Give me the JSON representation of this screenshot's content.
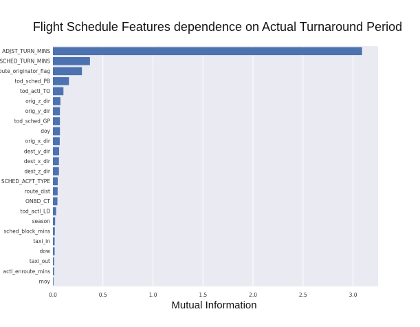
{
  "chart_data": {
    "type": "bar",
    "orientation": "horizontal",
    "title": "Flight Schedule Features dependence on Actual Turnaround Period",
    "xlabel": "Mutual Information",
    "ylabel": "",
    "xlim": [
      0,
      3.25
    ],
    "xticks": [
      0.0,
      0.5,
      1.0,
      1.5,
      2.0,
      2.5,
      3.0
    ],
    "xtick_labels": [
      "0.0",
      "0.5",
      "1.0",
      "1.5",
      "2.0",
      "2.5",
      "3.0"
    ],
    "grid": true,
    "bar_color": "#4c72b0",
    "background_color": "#eaeaf2",
    "categories": [
      "ADJST_TURN_MINS",
      "SCHED_TURN_MINS",
      "_route_originator_flag",
      "tod_sched_PB",
      "tod_actl_TO",
      "orig_z_dir",
      "orig_y_dir",
      "tod_sched_GP",
      "doy",
      "orig_x_dir",
      "dest_y_dir",
      "dest_x_dir",
      "dest_z_dir",
      "SCHED_ACFT_TYPE",
      "route_dist",
      "ONBD_CT",
      "tod_actl_LD",
      "season",
      "sched_block_mins",
      "taxi_in",
      "dow",
      "taxi_out",
      "actl_enroute_mins",
      "moy"
    ],
    "values": [
      3.09,
      0.37,
      0.29,
      0.16,
      0.105,
      0.075,
      0.07,
      0.07,
      0.07,
      0.068,
      0.062,
      0.06,
      0.06,
      0.048,
      0.047,
      0.045,
      0.032,
      0.022,
      0.019,
      0.017,
      0.017,
      0.012,
      0.012,
      0.006
    ]
  }
}
